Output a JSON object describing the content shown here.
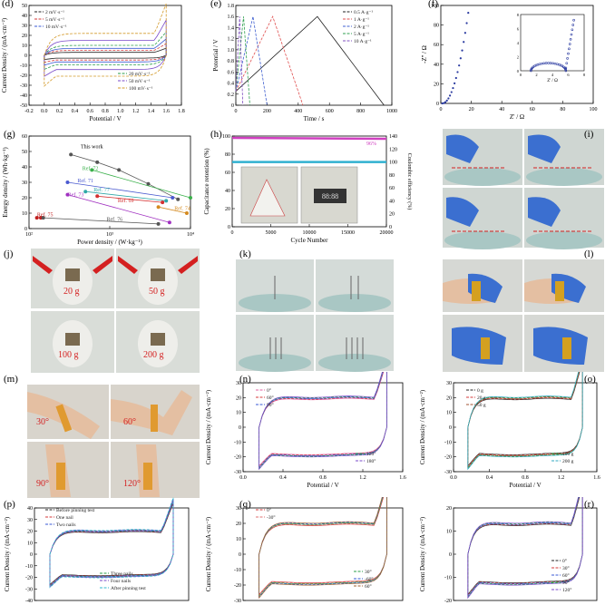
{
  "panels": {
    "d": {
      "label": "(d)"
    },
    "e": {
      "label": "(e)"
    },
    "f": {
      "label": "(f)"
    },
    "g": {
      "label": "(g)"
    },
    "h": {
      "label": "(h)"
    },
    "i": {
      "label": "(i)"
    },
    "j": {
      "label": "(j)",
      "tags": [
        "20 g",
        "50 g",
        "100 g",
        "200 g"
      ]
    },
    "k": {
      "label": "(k)"
    },
    "l": {
      "label": "(l)"
    },
    "m": {
      "label": "(m)",
      "tags": [
        "30°",
        "60°",
        "90°",
        "120°"
      ]
    },
    "n": {
      "label": "(n)"
    },
    "o": {
      "label": "(o)"
    },
    "p": {
      "label": "(p)"
    },
    "q": {
      "label": "(q)"
    },
    "r": {
      "label": "(r)"
    }
  },
  "colors": {
    "photo_bg": "#d9ddd8",
    "glove": "#3b6fd0",
    "skin": "#e4bfa2",
    "glass": "#a9c7c4",
    "tag_red": "#d42020"
  },
  "chart_data": [
    {
      "id": "d",
      "type": "line",
      "xlabel": "Potential / V",
      "ylabel": "Current Density / (mA·cm⁻²)",
      "xlim": [
        -0.2,
        1.8
      ],
      "ylim": [
        -50,
        50
      ],
      "xticks": [
        "-0.2",
        "0.0",
        "0.2",
        "0.4",
        "0.6",
        "0.8",
        "1.0",
        "1.2",
        "1.4",
        "1.6",
        "1.8"
      ],
      "yticks": [
        "-50",
        "-40",
        "-30",
        "-20",
        "-10",
        "0",
        "10",
        "20",
        "30",
        "40",
        "50"
      ],
      "series": [
        {
          "name": "2 mV·s⁻¹",
          "color": "#222222",
          "amp": 3
        },
        {
          "name": "5 mV·s⁻¹",
          "color": "#d43a3a",
          "amp": 5
        },
        {
          "name": "10 mV·s⁻¹",
          "color": "#3a5ad4",
          "amp": 7
        },
        {
          "name": "20 mV·s⁻¹",
          "color": "#2a9d4a",
          "amp": 10
        },
        {
          "name": "50 mV·s⁻¹",
          "color": "#7a4ac9",
          "amp": 15
        },
        {
          "name": "100 mV·s⁻¹",
          "color": "#d49a2a",
          "amp": 22
        }
      ]
    },
    {
      "id": "e",
      "type": "line",
      "xlabel": "Time / s",
      "ylabel": "Potential / V",
      "xlim": [
        0,
        1000
      ],
      "ylim": [
        0,
        1.8
      ],
      "xticks": [
        "0",
        "200",
        "400",
        "600",
        "800",
        "1000"
      ],
      "yticks": [
        "0",
        "0.2",
        "0.4",
        "0.6",
        "0.8",
        "1.0",
        "1.2",
        "1.4",
        "1.6",
        "1.8"
      ],
      "series": [
        {
          "name": "0.5 A·g⁻¹",
          "color": "#222222",
          "t": 950
        },
        {
          "name": "1 A·g⁻¹",
          "color": "#e05050",
          "t": 430
        },
        {
          "name": "2 A·g⁻¹",
          "color": "#4060d0",
          "t": 200
        },
        {
          "name": "5 A·g⁻¹",
          "color": "#30a050",
          "t": 90
        },
        {
          "name": "10 A·g⁻¹",
          "color": "#8050c0",
          "t": 45
        }
      ]
    },
    {
      "id": "f",
      "type": "scatter",
      "xlabel": "Z' / Ω",
      "ylabel": "-Z'' / Ω",
      "xlim": [
        0,
        100
      ],
      "ylim": [
        0,
        100
      ],
      "xticks": [
        "0",
        "20",
        "40",
        "60",
        "80",
        "100"
      ],
      "yticks": [
        "0",
        "20",
        "40",
        "60",
        "80",
        "100"
      ],
      "inset": {
        "xlabel": "Z' / Ω",
        "ylabel": "-Z'' / Ω",
        "xlim": [
          0,
          8
        ],
        "ylim": [
          0,
          8
        ],
        "xticks": [
          "0",
          "2",
          "4",
          "6",
          "8"
        ],
        "yticks": [
          "0",
          "2",
          "4",
          "6",
          "8"
        ]
      }
    },
    {
      "id": "g",
      "type": "scatter",
      "xlabel": "Power density / (W·kg⁻¹)",
      "ylabel": "Energy density / (Wh·kg⁻¹)",
      "xlim": [
        100,
        10000
      ],
      "ylim": [
        0,
        60
      ],
      "xticks": [
        "10²",
        "10³",
        "10⁴"
      ],
      "yticks": [
        "0",
        "10",
        "20",
        "30",
        "40",
        "50",
        "60"
      ],
      "annotations": [
        "This work",
        "Ref. 72",
        "Ref. 71",
        "Ref. 77",
        "Ref. 73",
        "Ref. 69",
        "Ref. 74",
        "Ref. 75",
        "Ref. 76"
      ],
      "series": [
        {
          "name": "This work",
          "color": "#555555",
          "points": [
            [
              330,
              48
            ],
            [
              700,
              43
            ],
            [
              1300,
              38
            ],
            [
              3000,
              29
            ],
            [
              7000,
              19
            ]
          ]
        },
        {
          "name": "Ref. 72",
          "color": "#3ab04a",
          "points": [
            [
              600,
              38
            ],
            [
              10000,
              20
            ]
          ]
        },
        {
          "name": "Ref. 71",
          "color": "#4a5ad0",
          "points": [
            [
              300,
              30
            ],
            [
              6000,
              20
            ]
          ]
        },
        {
          "name": "Ref. 77",
          "color": "#30a8a8",
          "points": [
            [
              500,
              24
            ],
            [
              5000,
              18
            ]
          ]
        },
        {
          "name": "Ref. 73",
          "color": "#a030c0",
          "points": [
            [
              300,
              22
            ],
            [
              5500,
              4
            ]
          ]
        },
        {
          "name": "Ref. 69",
          "color": "#d43030",
          "points": [
            [
              700,
              21
            ],
            [
              4500,
              17
            ]
          ]
        },
        {
          "name": "Ref. 74",
          "color": "#d48a20",
          "points": [
            [
              4000,
              14
            ],
            [
              9000,
              10
            ]
          ]
        },
        {
          "name": "Ref. 75",
          "color": "#c02020",
          "points": [
            [
              125,
              7
            ],
            [
              140,
              7
            ]
          ]
        },
        {
          "name": "Ref. 76",
          "color": "#555555",
          "points": [
            [
              150,
              7
            ],
            [
              4000,
              3
            ]
          ]
        }
      ]
    },
    {
      "id": "h",
      "type": "line",
      "xlabel": "Cycle Number",
      "ylabel": "Capacitance retention (%)",
      "y2label": "Coulombic efficiency (%)",
      "xlim": [
        0,
        20000
      ],
      "ylim": [
        0,
        100
      ],
      "y2lim": [
        0,
        140
      ],
      "xticks": [
        "0",
        "5000",
        "10000",
        "15000",
        "20000"
      ],
      "yticks": [
        "0",
        "20",
        "40",
        "60",
        "80",
        "100"
      ],
      "y2ticks": [
        "0",
        "20",
        "40",
        "60",
        "80",
        "100",
        "120",
        "140"
      ],
      "annotation": "96%",
      "inset_readout": "88:88",
      "series": [
        {
          "name": "Capacitance retention",
          "color": "#d040c0",
          "value": 98
        },
        {
          "name": "Coulombic efficiency",
          "color": "#30b0d0",
          "value": 100
        }
      ]
    },
    {
      "id": "n",
      "type": "line",
      "xlabel": "Potential / V",
      "ylabel": "Current Density / (mA·cm⁻²)",
      "xlim": [
        -0.2,
        1.8
      ],
      "ylim": [
        -30,
        30
      ],
      "xticks": [
        "0.0",
        "0.4",
        "0.8",
        "1.2",
        "1.6"
      ],
      "yticks": [
        "-30",
        "-20",
        "-10",
        "0",
        "10",
        "20",
        "30"
      ],
      "legend_top": [
        "0°",
        "60°",
        "90°"
      ],
      "legend_bottom": [
        "120°",
        "180°"
      ],
      "series": [
        {
          "name": "0°",
          "color": "#e060a0"
        },
        {
          "name": "60°",
          "color": "#d43a3a"
        },
        {
          "name": "90°",
          "color": "#3a5ad4"
        },
        {
          "name": "120°",
          "color": "#2a9d4a"
        },
        {
          "name": "180°",
          "color": "#7a4ac9"
        }
      ]
    },
    {
      "id": "o",
      "type": "line",
      "xlabel": "Potential / V",
      "ylabel": "Current Density / (mA·cm⁻²)",
      "xlim": [
        -0.2,
        1.8
      ],
      "ylim": [
        -30,
        30
      ],
      "xticks": [
        "0.0",
        "0.4",
        "0.8",
        "1.2",
        "1.6"
      ],
      "yticks": [
        "-30",
        "-20",
        "-10",
        "0",
        "10",
        "20",
        "30"
      ],
      "legend_top": [
        "0 g",
        "20 g",
        "50 g"
      ],
      "legend_bottom": [
        "100 g",
        "200 g"
      ],
      "series": [
        {
          "name": "0 g",
          "color": "#222222"
        },
        {
          "name": "20 g",
          "color": "#d43a3a"
        },
        {
          "name": "50 g",
          "color": "#a05030"
        },
        {
          "name": "100 g",
          "color": "#2a9d4a"
        },
        {
          "name": "200 g",
          "color": "#30a8c0"
        }
      ]
    },
    {
      "id": "p",
      "type": "line",
      "xlabel": "",
      "ylabel": "Current Density / (mA·cm⁻²)",
      "xlim": [
        -0.2,
        1.8
      ],
      "ylim": [
        -40,
        40
      ],
      "xticks": [],
      "yticks": [
        "-40",
        "-30",
        "-20",
        "-10",
        "0",
        "10",
        "20",
        "30",
        "40"
      ],
      "legend_top": [
        "Before pinning test",
        "One nail",
        "Two nails"
      ],
      "legend_bottom": [
        "Three nails",
        "Four nails",
        "After pinning test"
      ],
      "series": [
        {
          "name": "Before pinning test",
          "color": "#222222"
        },
        {
          "name": "One nail",
          "color": "#d43a3a"
        },
        {
          "name": "Two nails",
          "color": "#3a5ad4"
        },
        {
          "name": "Three nails",
          "color": "#2a9d4a"
        },
        {
          "name": "Four nails",
          "color": "#7a4ac9"
        },
        {
          "name": "After pinning test",
          "color": "#30b8d0"
        }
      ]
    },
    {
      "id": "q",
      "type": "line",
      "xlabel": "",
      "ylabel": "Current Density / (mA·cm⁻²)",
      "xlim": [
        -0.2,
        1.8
      ],
      "ylim": [
        -30,
        30
      ],
      "xticks": [],
      "yticks": [
        "-30",
        "-20",
        "-10",
        "0",
        "10",
        "20",
        "30"
      ],
      "legend_top": [
        "0°",
        "-30°"
      ],
      "legend_bottom": [
        "30°",
        "-60°",
        "60°"
      ],
      "series": [
        {
          "name": "0°",
          "color": "#d43a3a"
        },
        {
          "name": "-30°",
          "color": "#e07070"
        },
        {
          "name": "30°",
          "color": "#2a9d4a"
        },
        {
          "name": "-60°",
          "color": "#3a5ad4"
        },
        {
          "name": "60°",
          "color": "#a06030"
        }
      ]
    },
    {
      "id": "r",
      "type": "line",
      "xlabel": "",
      "ylabel": "Current Density / (mA·cm⁻²)",
      "xlim": [
        -0.2,
        1.8
      ],
      "ylim": [
        -30,
        30
      ],
      "xticks": [],
      "yticks": [
        "-20",
        "-10",
        "0",
        "10",
        "20"
      ],
      "legend_bottom": [
        "0°",
        "30°",
        "60°",
        "90°",
        "120°"
      ],
      "series": [
        {
          "name": "0°",
          "color": "#222222"
        },
        {
          "name": "30°",
          "color": "#d43a3a"
        },
        {
          "name": "60°",
          "color": "#3a5ad4"
        },
        {
          "name": "90°",
          "color": "#2a9d4a"
        },
        {
          "name": "120°",
          "color": "#7a4ac9"
        }
      ]
    }
  ]
}
